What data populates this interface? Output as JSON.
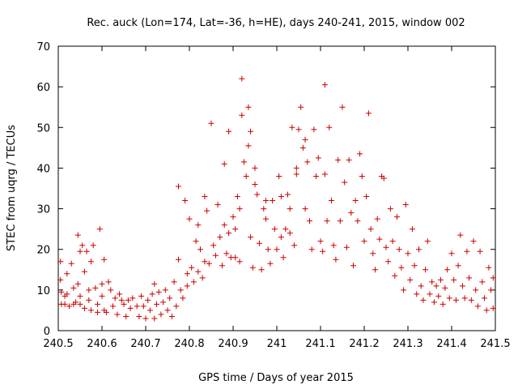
{
  "chart_data": {
    "type": "scatter",
    "title": "Rec. auck (Lon=174, Lat=-36, h=HE), days 240-241, 2015, window 002",
    "xlabel": "GPS time / Days of year 2015",
    "ylabel": "STEC from uqrg / TECUs",
    "xlim": [
      240.5,
      241.5
    ],
    "ylim": [
      0,
      70
    ],
    "xticks": [
      240.5,
      240.6,
      240.7,
      240.8,
      240.9,
      241,
      241.1,
      241.2,
      241.3,
      241.4,
      241.5
    ],
    "xtick_labels": [
      "240.5",
      "240.6",
      "240.7",
      "240.8",
      "240.9",
      "241",
      "241.1",
      "241.2",
      "241.3",
      "241.4",
      "241.5"
    ],
    "yticks": [
      0,
      10,
      20,
      30,
      40,
      50,
      60,
      70
    ],
    "ytick_labels": [
      "0",
      "10",
      "20",
      "30",
      "40",
      "50",
      "60",
      "70"
    ],
    "grid": false,
    "legend": "none",
    "marker": "plus",
    "color": "#cc0000",
    "series": [
      {
        "points": [
          [
            240.505,
            12.5
          ],
          [
            240.505,
            17
          ],
          [
            240.507,
            9.5
          ],
          [
            240.507,
            6.5
          ],
          [
            240.515,
            8.5
          ],
          [
            240.515,
            6.5
          ],
          [
            240.52,
            14
          ],
          [
            240.52,
            9
          ],
          [
            240.525,
            6
          ],
          [
            240.53,
            16.5
          ],
          [
            240.535,
            10.5
          ],
          [
            240.535,
            6.5
          ],
          [
            240.54,
            7
          ],
          [
            240.545,
            23.5
          ],
          [
            240.545,
            11.5
          ],
          [
            240.55,
            19.5
          ],
          [
            240.55,
            8.5
          ],
          [
            240.55,
            6.5
          ],
          [
            240.555,
            21
          ],
          [
            240.56,
            14.5
          ],
          [
            240.56,
            5.5
          ],
          [
            240.565,
            19.5
          ],
          [
            240.57,
            10
          ],
          [
            240.57,
            7.5
          ],
          [
            240.575,
            17
          ],
          [
            240.575,
            5
          ],
          [
            240.58,
            21
          ],
          [
            240.585,
            10.5
          ],
          [
            240.59,
            6.5
          ],
          [
            240.59,
            4.5
          ],
          [
            240.595,
            25
          ],
          [
            240.6,
            11.5
          ],
          [
            240.6,
            8.5
          ],
          [
            240.605,
            17.5
          ],
          [
            240.605,
            5
          ],
          [
            240.61,
            4.5
          ],
          [
            240.615,
            12
          ],
          [
            240.62,
            10
          ],
          [
            240.625,
            6
          ],
          [
            240.63,
            8
          ],
          [
            240.635,
            4
          ],
          [
            240.64,
            9
          ],
          [
            240.645,
            7.5
          ],
          [
            240.65,
            6.5
          ],
          [
            240.655,
            3.5
          ],
          [
            240.66,
            7.5
          ],
          [
            240.665,
            5.5
          ],
          [
            240.67,
            8
          ],
          [
            240.68,
            6
          ],
          [
            240.685,
            3.5
          ],
          [
            240.69,
            8.5
          ],
          [
            240.695,
            6
          ],
          [
            240.7,
            3
          ],
          [
            240.705,
            7.5
          ],
          [
            240.71,
            5
          ],
          [
            240.715,
            9
          ],
          [
            240.72,
            3
          ],
          [
            240.72,
            11.5
          ],
          [
            240.725,
            6.5
          ],
          [
            240.73,
            9.5
          ],
          [
            240.735,
            4
          ],
          [
            240.74,
            7
          ],
          [
            240.745,
            10
          ],
          [
            240.75,
            5
          ],
          [
            240.755,
            8
          ],
          [
            240.76,
            3.5
          ],
          [
            240.765,
            12
          ],
          [
            240.77,
            6
          ],
          [
            240.775,
            35.5
          ],
          [
            240.775,
            17.5
          ],
          [
            240.78,
            10
          ],
          [
            240.785,
            8
          ],
          [
            240.79,
            32
          ],
          [
            240.795,
            14
          ],
          [
            240.795,
            11
          ],
          [
            240.8,
            27.5
          ],
          [
            240.805,
            15.5
          ],
          [
            240.81,
            12
          ],
          [
            240.815,
            22
          ],
          [
            240.82,
            26
          ],
          [
            240.82,
            14.5
          ],
          [
            240.825,
            20
          ],
          [
            240.83,
            13
          ],
          [
            240.835,
            33
          ],
          [
            240.835,
            17
          ],
          [
            240.84,
            29.5
          ],
          [
            240.845,
            16.5
          ],
          [
            240.85,
            51
          ],
          [
            240.855,
            21
          ],
          [
            240.86,
            18.5
          ],
          [
            240.865,
            31
          ],
          [
            240.87,
            23
          ],
          [
            240.875,
            16
          ],
          [
            240.88,
            41
          ],
          [
            240.88,
            26
          ],
          [
            240.885,
            19
          ],
          [
            240.89,
            49
          ],
          [
            240.89,
            24
          ],
          [
            240.895,
            18
          ],
          [
            240.9,
            28
          ],
          [
            240.905,
            25
          ],
          [
            240.905,
            18
          ],
          [
            240.91,
            33
          ],
          [
            240.915,
            30
          ],
          [
            240.915,
            17
          ],
          [
            240.92,
            62
          ],
          [
            240.92,
            53
          ],
          [
            240.925,
            41.5
          ],
          [
            240.93,
            38
          ],
          [
            240.935,
            55
          ],
          [
            240.935,
            45.5
          ],
          [
            240.94,
            49
          ],
          [
            240.94,
            23
          ],
          [
            240.945,
            15.5
          ],
          [
            240.95,
            40
          ],
          [
            240.95,
            36
          ],
          [
            240.955,
            33.5
          ],
          [
            240.96,
            21.5
          ],
          [
            240.965,
            15
          ],
          [
            240.97,
            30
          ],
          [
            240.975,
            32
          ],
          [
            240.975,
            27.5
          ],
          [
            240.98,
            20
          ],
          [
            240.985,
            16.5
          ],
          [
            240.99,
            32
          ],
          [
            240.995,
            25
          ],
          [
            241.0,
            20
          ],
          [
            241.005,
            38
          ],
          [
            241.01,
            23
          ],
          [
            241.01,
            33
          ],
          [
            241.015,
            18
          ],
          [
            241.02,
            25
          ],
          [
            241.025,
            33.5
          ],
          [
            241.03,
            30
          ],
          [
            241.03,
            24
          ],
          [
            241.035,
            50
          ],
          [
            241.04,
            21
          ],
          [
            241.045,
            40
          ],
          [
            241.045,
            38.5
          ],
          [
            241.05,
            49.5
          ],
          [
            241.055,
            55
          ],
          [
            241.06,
            45
          ],
          [
            241.065,
            47
          ],
          [
            241.065,
            30
          ],
          [
            241.07,
            41.5
          ],
          [
            241.075,
            27
          ],
          [
            241.08,
            20
          ],
          [
            241.085,
            49.5
          ],
          [
            241.09,
            38
          ],
          [
            241.095,
            42.5
          ],
          [
            241.1,
            22
          ],
          [
            241.105,
            19.5
          ],
          [
            241.11,
            60.5
          ],
          [
            241.11,
            38.5
          ],
          [
            241.115,
            27
          ],
          [
            241.12,
            50
          ],
          [
            241.125,
            32
          ],
          [
            241.13,
            21
          ],
          [
            241.135,
            17.5
          ],
          [
            241.14,
            42
          ],
          [
            241.145,
            27
          ],
          [
            241.15,
            55
          ],
          [
            241.155,
            36.5
          ],
          [
            241.16,
            20.5
          ],
          [
            241.165,
            42
          ],
          [
            241.17,
            29
          ],
          [
            241.175,
            16
          ],
          [
            241.18,
            32
          ],
          [
            241.185,
            27
          ],
          [
            241.19,
            43.5
          ],
          [
            241.195,
            38
          ],
          [
            241.2,
            22
          ],
          [
            241.205,
            33
          ],
          [
            241.21,
            53.5
          ],
          [
            241.215,
            25
          ],
          [
            241.22,
            19
          ],
          [
            241.225,
            15
          ],
          [
            241.23,
            27.5
          ],
          [
            241.235,
            22.5
          ],
          [
            241.24,
            38
          ],
          [
            241.245,
            37.5
          ],
          [
            241.25,
            20.5
          ],
          [
            241.255,
            17
          ],
          [
            241.26,
            30
          ],
          [
            241.265,
            22
          ],
          [
            241.27,
            13.5
          ],
          [
            241.275,
            28
          ],
          [
            241.28,
            20
          ],
          [
            241.285,
            15.5
          ],
          [
            241.29,
            10
          ],
          [
            241.295,
            31
          ],
          [
            241.3,
            19
          ],
          [
            241.305,
            12.5
          ],
          [
            241.31,
            25
          ],
          [
            241.315,
            16
          ],
          [
            241.32,
            9
          ],
          [
            241.325,
            20
          ],
          [
            241.33,
            11
          ],
          [
            241.335,
            7.5
          ],
          [
            241.34,
            15
          ],
          [
            241.345,
            22
          ],
          [
            241.35,
            9
          ],
          [
            241.355,
            12
          ],
          [
            241.36,
            7
          ],
          [
            241.365,
            11
          ],
          [
            241.37,
            8.5
          ],
          [
            241.375,
            12.5
          ],
          [
            241.38,
            6.5
          ],
          [
            241.385,
            10.5
          ],
          [
            241.39,
            15
          ],
          [
            241.395,
            8
          ],
          [
            241.4,
            19
          ],
          [
            241.405,
            12.5
          ],
          [
            241.41,
            7.5
          ],
          [
            241.415,
            16
          ],
          [
            241.42,
            23.5
          ],
          [
            241.425,
            11
          ],
          [
            241.43,
            8
          ],
          [
            241.435,
            19.5
          ],
          [
            241.44,
            13
          ],
          [
            241.445,
            7.5
          ],
          [
            241.45,
            22
          ],
          [
            241.455,
            10
          ],
          [
            241.46,
            6
          ],
          [
            241.465,
            19.5
          ],
          [
            241.47,
            12
          ],
          [
            241.475,
            8
          ],
          [
            241.48,
            5
          ],
          [
            241.485,
            15.5
          ],
          [
            241.49,
            10
          ],
          [
            241.495,
            13
          ],
          [
            241.495,
            5.5
          ]
        ]
      }
    ]
  }
}
